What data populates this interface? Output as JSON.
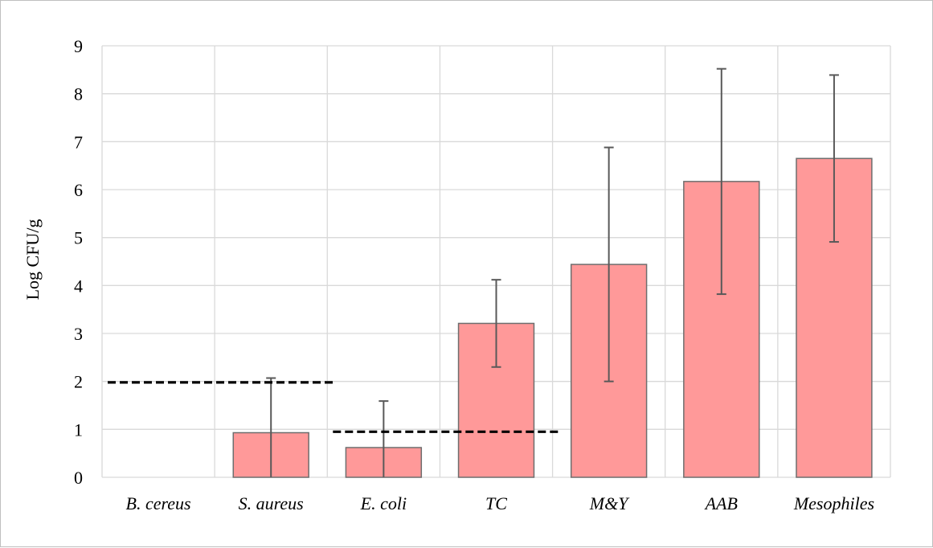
{
  "chart_data": {
    "type": "bar",
    "ylabel": "Log CFU/g",
    "ylim": [
      0,
      9
    ],
    "yticks": [
      0,
      1,
      2,
      3,
      4,
      5,
      6,
      7,
      8,
      9
    ],
    "grid": true,
    "categories": [
      "B. cereus",
      "S. aureus",
      "E. coli",
      "TC",
      "M&Y",
      "AAB",
      "Mesophiles"
    ],
    "values": [
      0,
      0.93,
      0.62,
      3.21,
      4.44,
      6.17,
      6.65
    ],
    "error": [
      0,
      1.14,
      0.97,
      0.91,
      2.44,
      2.35,
      1.74
    ],
    "reference_lines": [
      {
        "value": 1.98,
        "from_category": "B. cereus",
        "to_category": "S. aureus"
      },
      {
        "value": 0.95,
        "from_category": "E. coli",
        "to_category": "TC"
      }
    ],
    "colors": {
      "bar": "#ff9999",
      "bar_edge": "#6e6e6e",
      "error": "#595959",
      "grid": "#d9d9d9",
      "reference": "#000000"
    }
  }
}
